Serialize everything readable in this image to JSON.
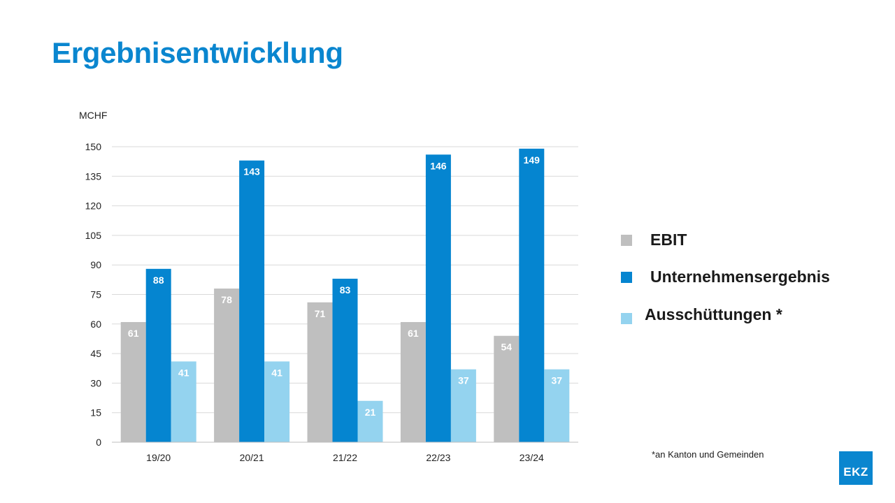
{
  "page": {
    "title": "Ergebnisentwicklung"
  },
  "chart_data": {
    "type": "bar",
    "title": "",
    "unit_label": "MCHF",
    "categories": [
      "19/20",
      "20/21",
      "21/22",
      "22/23",
      "23/24"
    ],
    "series": [
      {
        "name": "EBIT",
        "color": "#bfbfbf",
        "values": [
          61,
          78,
          71,
          61,
          54
        ]
      },
      {
        "name": "Unternehmensergebnis",
        "color": "#0585d0",
        "values": [
          88,
          143,
          83,
          146,
          149
        ]
      },
      {
        "name": "Ausschüttungen *",
        "color": "#94d3ef",
        "values": [
          41,
          41,
          21,
          37,
          37
        ]
      }
    ],
    "ylim": [
      0,
      150
    ],
    "yticks": [
      0,
      15,
      30,
      45,
      60,
      75,
      90,
      105,
      120,
      135,
      150
    ],
    "grid": true,
    "legend_position": "right",
    "data_labels": true
  },
  "footnote": "*an Kanton und Gemeinden",
  "logo": {
    "text": "EKZ"
  }
}
